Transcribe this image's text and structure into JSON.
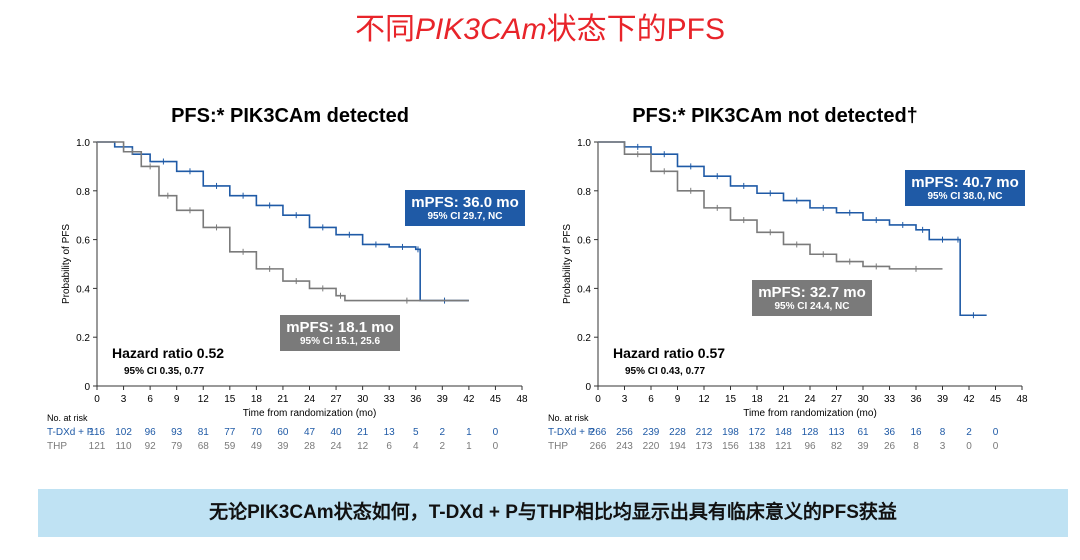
{
  "title": {
    "pre": "不同",
    "italic": "PIK3CAm",
    "post": "状态下的PFS"
  },
  "footer": "无论PIK3CAm状态如何，T-DXd + P与THP相比均显示出具有临床意义的PFS获益",
  "colors": {
    "blue": "#1f5aa6",
    "gray": "#7a7a7a",
    "title": "#e8242a",
    "footer_bg": "#bfe2f3"
  },
  "chart_data": [
    {
      "type": "line",
      "title": "PFS:* PIK3CAm detected",
      "xlabel": "Time from randomization (mo)",
      "ylabel": "Probability of PFS",
      "xlim": [
        0,
        48
      ],
      "ylim": [
        0,
        1
      ],
      "xticks": [
        0,
        3,
        6,
        9,
        12,
        15,
        18,
        21,
        24,
        27,
        30,
        33,
        36,
        39,
        42,
        45,
        48
      ],
      "yticks": [
        "0",
        "0.2",
        "0.4",
        "0.6",
        "0.8",
        "1.0"
      ],
      "series": [
        {
          "name": "T-DXd + P",
          "color": "#1f5aa6",
          "x": [
            0,
            2,
            4,
            6,
            9,
            12,
            15,
            18,
            21,
            24,
            27,
            30,
            33,
            36,
            36.5,
            42
          ],
          "y": [
            1,
            0.98,
            0.95,
            0.92,
            0.88,
            0.82,
            0.78,
            0.74,
            0.7,
            0.65,
            0.62,
            0.58,
            0.57,
            0.56,
            0.35,
            0.35
          ],
          "median": "mPFS: 36.0 mo",
          "ci": "95% CI 29.7, NC",
          "at_risk": [
            116,
            102,
            96,
            93,
            81,
            77,
            70,
            60,
            47,
            40,
            21,
            13,
            5,
            2,
            1,
            0
          ]
        },
        {
          "name": "THP",
          "color": "#7a7a7a",
          "x": [
            0,
            3,
            5,
            7,
            9,
            12,
            15,
            18,
            21,
            24,
            27,
            28,
            42
          ],
          "y": [
            1,
            0.96,
            0.9,
            0.78,
            0.72,
            0.65,
            0.55,
            0.48,
            0.43,
            0.4,
            0.37,
            0.35,
            0.35
          ],
          "median": "mPFS: 18.1 mo",
          "ci": "95% CI 15.1, 25.6",
          "at_risk": [
            121,
            110,
            92,
            79,
            68,
            59,
            49,
            39,
            28,
            24,
            12,
            6,
            4,
            2,
            1,
            0
          ]
        }
      ],
      "hr": "Hazard ratio 0.52",
      "hr_ci": "95% CI 0.35, 0.77",
      "at_risk_label": "No. at risk"
    },
    {
      "type": "line",
      "title": "PFS:* PIK3CAm not detected†",
      "xlabel": "Time from randomization (mo)",
      "ylabel": "Probability of PFS",
      "xlim": [
        0,
        48
      ],
      "ylim": [
        0,
        1
      ],
      "xticks": [
        0,
        3,
        6,
        9,
        12,
        15,
        18,
        21,
        24,
        27,
        30,
        33,
        36,
        39,
        42,
        45,
        48
      ],
      "yticks": [
        "0",
        "0.2",
        "0.4",
        "0.6",
        "0.8",
        "1.0"
      ],
      "series": [
        {
          "name": "T-DXd + P",
          "color": "#1f5aa6",
          "x": [
            0,
            3,
            6,
            9,
            12,
            15,
            18,
            21,
            24,
            27,
            30,
            33,
            36,
            37.5,
            40.5,
            41,
            44
          ],
          "y": [
            1,
            0.98,
            0.95,
            0.9,
            0.86,
            0.82,
            0.79,
            0.76,
            0.73,
            0.71,
            0.68,
            0.66,
            0.64,
            0.6,
            0.6,
            0.29,
            0.29
          ],
          "median": "mPFS: 40.7 mo",
          "ci": "95% CI 38.0, NC",
          "at_risk": [
            266,
            256,
            239,
            228,
            212,
            198,
            172,
            148,
            128,
            113,
            61,
            36,
            16,
            8,
            2,
            0
          ]
        },
        {
          "name": "THP",
          "color": "#7a7a7a",
          "x": [
            0,
            3,
            6,
            9,
            12,
            15,
            18,
            21,
            24,
            27,
            30,
            33,
            39
          ],
          "y": [
            1,
            0.95,
            0.88,
            0.8,
            0.73,
            0.68,
            0.63,
            0.58,
            0.54,
            0.51,
            0.49,
            0.48,
            0.48
          ],
          "median": "mPFS: 32.7 mo",
          "ci": "95% CI 24.4, NC",
          "at_risk": [
            266,
            243,
            220,
            194,
            173,
            156,
            138,
            121,
            96,
            82,
            39,
            26,
            8,
            3,
            0,
            0
          ]
        }
      ],
      "hr": "Hazard ratio 0.57",
      "hr_ci": "95% CI 0.43, 0.77",
      "at_risk_label": "No. at risk"
    }
  ]
}
